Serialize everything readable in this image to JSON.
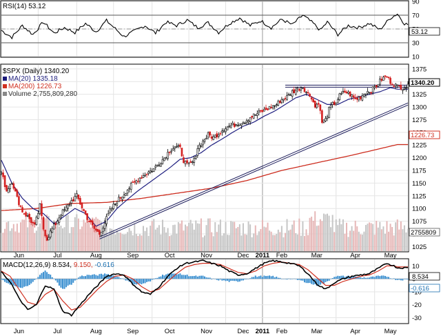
{
  "chart_data": {
    "type": "candlestick-stock-chart",
    "symbol_label": "$SPX (Daily) 1340.20",
    "months": [
      "Jun",
      "Jul",
      "Aug",
      "Sep",
      "Oct",
      "Nov",
      "Dec",
      "2011",
      "Feb",
      "Mar",
      "Apr",
      "May"
    ],
    "rsi": {
      "title": "RSI(14) 53.12",
      "value_badge": "53.12",
      "ticks": [
        "90",
        "70",
        "50",
        "30",
        "10"
      ],
      "ylim": [
        10,
        90
      ],
      "levels": [
        70,
        30
      ],
      "anchors": [
        [
          0,
          48
        ],
        [
          6,
          38
        ],
        [
          12,
          55
        ],
        [
          18,
          42
        ],
        [
          24,
          60
        ],
        [
          30,
          44
        ],
        [
          36,
          52
        ],
        [
          42,
          45
        ],
        [
          48,
          58
        ],
        [
          54,
          46
        ],
        [
          60,
          62
        ],
        [
          66,
          48
        ],
        [
          70,
          39
        ],
        [
          76,
          47
        ],
        [
          82,
          55
        ],
        [
          88,
          44
        ],
        [
          94,
          60
        ],
        [
          100,
          55
        ],
        [
          106,
          63
        ],
        [
          112,
          52
        ],
        [
          118,
          59
        ],
        [
          124,
          45
        ],
        [
          130,
          58
        ],
        [
          136,
          66
        ],
        [
          142,
          55
        ],
        [
          148,
          62
        ],
        [
          154,
          52
        ],
        [
          160,
          64
        ],
        [
          166,
          56
        ],
        [
          172,
          70
        ],
        [
          178,
          58
        ],
        [
          182,
          48
        ],
        [
          186,
          60
        ],
        [
          192,
          42
        ],
        [
          198,
          55
        ],
        [
          204,
          52
        ],
        [
          210,
          58
        ],
        [
          216,
          49
        ],
        [
          222,
          66
        ],
        [
          226,
          72
        ],
        [
          230,
          58
        ],
        [
          236,
          53
        ]
      ]
    },
    "price": {
      "series_labels": {
        "ma20": "MA(20) 1335.18",
        "ma200": "MA(200) 1226.73",
        "volume": "Volume 2,755,809,280"
      },
      "last_price_badge": "1340.20",
      "ma200_badge": "1226.73",
      "volume_badge": "2755809",
      "ticks": [
        "1375",
        "1350",
        "1325",
        "1300",
        "1275",
        "1250",
        "1225",
        "1200",
        "1175",
        "1150",
        "1125",
        "1100",
        "1075",
        "1050",
        "1025"
      ],
      "ylim": [
        1016,
        1383
      ],
      "close_anchors": [
        [
          0,
          1170
        ],
        [
          3,
          1135
        ],
        [
          6,
          1155
        ],
        [
          9,
          1120
        ],
        [
          12,
          1095
        ],
        [
          16,
          1080
        ],
        [
          19,
          1065
        ],
        [
          22,
          1105
        ],
        [
          24,
          1060
        ],
        [
          26,
          1040
        ],
        [
          29,
          1060
        ],
        [
          31,
          1070
        ],
        [
          34,
          1090
        ],
        [
          37,
          1100
        ],
        [
          40,
          1115
        ],
        [
          43,
          1125
        ],
        [
          45,
          1110
        ],
        [
          47,
          1095
        ],
        [
          50,
          1075
        ],
        [
          53,
          1060
        ],
        [
          56,
          1050
        ],
        [
          58,
          1065
        ],
        [
          60,
          1080
        ],
        [
          62,
          1095
        ],
        [
          64,
          1105
        ],
        [
          66,
          1115
        ],
        [
          69,
          1125
        ],
        [
          72,
          1138
        ],
        [
          75,
          1148
        ],
        [
          78,
          1158
        ],
        [
          81,
          1165
        ],
        [
          84,
          1172
        ],
        [
          87,
          1178
        ],
        [
          90,
          1190
        ],
        [
          93,
          1200
        ],
        [
          96,
          1215
        ],
        [
          99,
          1222
        ],
        [
          102,
          1218
        ],
        [
          104,
          1195
        ],
        [
          106,
          1185
        ],
        [
          108,
          1188
        ],
        [
          110,
          1195
        ],
        [
          112,
          1220
        ],
        [
          115,
          1232
        ],
        [
          118,
          1245
        ],
        [
          121,
          1240
        ],
        [
          124,
          1248
        ],
        [
          127,
          1258
        ],
        [
          130,
          1262
        ],
        [
          133,
          1265
        ],
        [
          136,
          1270
        ],
        [
          139,
          1272
        ],
        [
          142,
          1280
        ],
        [
          145,
          1285
        ],
        [
          148,
          1290
        ],
        [
          151,
          1295
        ],
        [
          154,
          1300
        ],
        [
          157,
          1305
        ],
        [
          160,
          1315
        ],
        [
          163,
          1320
        ],
        [
          166,
          1330
        ],
        [
          169,
          1335
        ],
        [
          172,
          1340
        ],
        [
          175,
          1325
        ],
        [
          177,
          1320
        ],
        [
          179,
          1300
        ],
        [
          181,
          1310
        ],
        [
          183,
          1270
        ],
        [
          185,
          1275
        ],
        [
          187,
          1295
        ],
        [
          189,
          1305
        ],
        [
          191,
          1310
        ],
        [
          193,
          1322
        ],
        [
          196,
          1330
        ],
        [
          199,
          1325
        ],
        [
          202,
          1315
        ],
        [
          205,
          1320
        ],
        [
          208,
          1330
        ],
        [
          211,
          1332
        ],
        [
          214,
          1342
        ],
        [
          217,
          1355
        ],
        [
          220,
          1360
        ],
        [
          222,
          1350
        ],
        [
          224,
          1345
        ],
        [
          226,
          1340
        ]
      ],
      "ma20_anchors": [
        [
          0,
          1195
        ],
        [
          6,
          1150
        ],
        [
          12,
          1120
        ],
        [
          18,
          1100
        ],
        [
          24,
          1090
        ],
        [
          30,
          1070
        ],
        [
          36,
          1085
        ],
        [
          42,
          1100
        ],
        [
          48,
          1090
        ],
        [
          54,
          1065
        ],
        [
          60,
          1075
        ],
        [
          66,
          1100
        ],
        [
          72,
          1118
        ],
        [
          78,
          1135
        ],
        [
          84,
          1150
        ],
        [
          90,
          1165
        ],
        [
          96,
          1180
        ],
        [
          102,
          1197
        ],
        [
          108,
          1200
        ],
        [
          114,
          1210
        ],
        [
          120,
          1225
        ],
        [
          126,
          1237
        ],
        [
          132,
          1250
        ],
        [
          138,
          1262
        ],
        [
          144,
          1270
        ],
        [
          150,
          1282
        ],
        [
          156,
          1292
        ],
        [
          162,
          1305
        ],
        [
          168,
          1318
        ],
        [
          174,
          1325
        ],
        [
          180,
          1315
        ],
        [
          186,
          1305
        ],
        [
          192,
          1305
        ],
        [
          198,
          1315
        ],
        [
          204,
          1320
        ],
        [
          210,
          1325
        ],
        [
          216,
          1330
        ],
        [
          222,
          1338
        ],
        [
          226,
          1335
        ]
      ],
      "ma200_anchors": [
        [
          0,
          1096
        ],
        [
          20,
          1100
        ],
        [
          40,
          1110
        ],
        [
          60,
          1112
        ],
        [
          80,
          1120
        ],
        [
          100,
          1130
        ],
        [
          120,
          1140
        ],
        [
          140,
          1155
        ],
        [
          160,
          1175
        ],
        [
          180,
          1190
        ],
        [
          200,
          1205
        ],
        [
          215,
          1217
        ],
        [
          226,
          1226
        ]
      ],
      "trendlines": [
        {
          "name": "support-trendline",
          "from": [
            56,
            1044
          ],
          "to": [
            232,
            1308
          ]
        },
        {
          "name": "resistance-line",
          "from": [
            162,
            1343
          ],
          "to": [
            232,
            1343
          ]
        }
      ]
    },
    "macd": {
      "title": "MACD(12,26,9) 8.534, 9.150, -0.616",
      "title_parts": [
        "MACD(12,26,9) 8.534,",
        "9.150,",
        "-0.616"
      ],
      "macd_badge": "8.534",
      "hist_badge": "-0.616",
      "ticks": [
        "10",
        "0",
        "-10",
        "-20",
        "-30"
      ],
      "ylim": [
        -34,
        15
      ],
      "macd_anchors": [
        [
          0,
          5
        ],
        [
          5,
          -2
        ],
        [
          10,
          -15
        ],
        [
          15,
          -24
        ],
        [
          20,
          -20
        ],
        [
          25,
          -5
        ],
        [
          30,
          -8
        ],
        [
          35,
          -25
        ],
        [
          40,
          -28
        ],
        [
          45,
          -20
        ],
        [
          50,
          -12
        ],
        [
          55,
          -5
        ],
        [
          60,
          2
        ],
        [
          65,
          4
        ],
        [
          70,
          3
        ],
        [
          75,
          -4
        ],
        [
          80,
          -10
        ],
        [
          85,
          -12
        ],
        [
          90,
          -6
        ],
        [
          95,
          2
        ],
        [
          100,
          8
        ],
        [
          105,
          12
        ],
        [
          110,
          13
        ],
        [
          115,
          14
        ],
        [
          120,
          12
        ],
        [
          125,
          10
        ],
        [
          130,
          6
        ],
        [
          135,
          3
        ],
        [
          140,
          4
        ],
        [
          145,
          8
        ],
        [
          150,
          12
        ],
        [
          155,
          14
        ],
        [
          160,
          13
        ],
        [
          165,
          12
        ],
        [
          170,
          10
        ],
        [
          175,
          4
        ],
        [
          180,
          -4
        ],
        [
          185,
          -8
        ],
        [
          190,
          -3
        ],
        [
          195,
          0
        ],
        [
          200,
          2
        ],
        [
          205,
          3
        ],
        [
          210,
          4
        ],
        [
          215,
          8
        ],
        [
          220,
          12
        ],
        [
          224,
          10
        ],
        [
          226,
          8.5
        ]
      ],
      "signal_anchors": [
        [
          0,
          6
        ],
        [
          5,
          2
        ],
        [
          10,
          -8
        ],
        [
          15,
          -18
        ],
        [
          20,
          -20
        ],
        [
          25,
          -12
        ],
        [
          30,
          -8
        ],
        [
          35,
          -17
        ],
        [
          40,
          -24
        ],
        [
          45,
          -22
        ],
        [
          50,
          -15
        ],
        [
          55,
          -8
        ],
        [
          60,
          -2
        ],
        [
          65,
          2
        ],
        [
          70,
          3
        ],
        [
          75,
          0
        ],
        [
          80,
          -6
        ],
        [
          85,
          -10
        ],
        [
          90,
          -8
        ],
        [
          95,
          -2
        ],
        [
          100,
          4
        ],
        [
          105,
          9
        ],
        [
          110,
          11
        ],
        [
          115,
          12
        ],
        [
          120,
          12
        ],
        [
          125,
          11
        ],
        [
          130,
          8
        ],
        [
          135,
          5
        ],
        [
          140,
          4
        ],
        [
          145,
          6
        ],
        [
          150,
          10
        ],
        [
          155,
          12
        ],
        [
          160,
          13
        ],
        [
          165,
          12
        ],
        [
          170,
          11
        ],
        [
          175,
          7
        ],
        [
          180,
          1
        ],
        [
          185,
          -5
        ],
        [
          190,
          -5
        ],
        [
          195,
          -2
        ],
        [
          200,
          0
        ],
        [
          205,
          2
        ],
        [
          210,
          3
        ],
        [
          215,
          6
        ],
        [
          220,
          10
        ],
        [
          224,
          10
        ],
        [
          226,
          9.2
        ]
      ]
    }
  }
}
